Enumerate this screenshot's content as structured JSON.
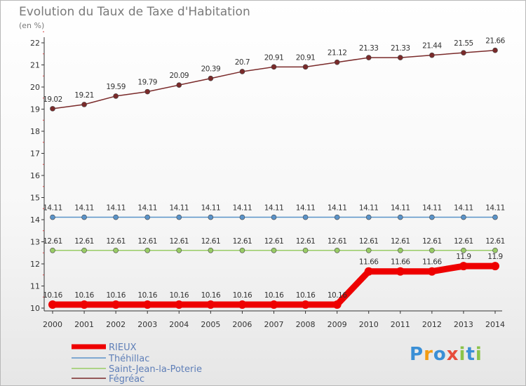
{
  "chart_data": {
    "type": "line",
    "title": "Evolution du Taux de Taxe d'Habitation",
    "subtitle": "(en %)",
    "x": [
      2000,
      2001,
      2002,
      2003,
      2004,
      2005,
      2006,
      2007,
      2008,
      2009,
      2010,
      2011,
      2012,
      2013,
      2014
    ],
    "ylim": [
      10,
      22
    ],
    "yticks": [
      10,
      11,
      12,
      13,
      14,
      15,
      16,
      17,
      18,
      19,
      20,
      21,
      22
    ],
    "grid": false,
    "legend_position": "bottom-left",
    "series": [
      {
        "name": "Fégréac",
        "color": "#7a2a2a",
        "values": [
          19.02,
          19.21,
          19.59,
          19.79,
          20.09,
          20.39,
          20.7,
          20.91,
          20.91,
          21.12,
          21.33,
          21.33,
          21.44,
          21.55,
          21.66
        ],
        "labels": [
          "19.02",
          "19.21",
          "19.59",
          "19.79",
          "20.09",
          "20.39",
          "20.7",
          "20.91",
          "20.91",
          "21.12",
          "21.33",
          "21.33",
          "21.44",
          "21.55",
          "21.66"
        ]
      },
      {
        "name": "Théhillac",
        "color": "#5a93c9",
        "values": [
          14.11,
          14.11,
          14.11,
          14.11,
          14.11,
          14.11,
          14.11,
          14.11,
          14.11,
          14.11,
          14.11,
          14.11,
          14.11,
          14.11,
          14.11
        ],
        "labels": [
          "14.11",
          "14.11",
          "14.11",
          "14.11",
          "14.11",
          "14.11",
          "14.11",
          "14.11",
          "14.11",
          "14.11",
          "14.11",
          "14.11",
          "14.11",
          "14.11",
          "14.11"
        ]
      },
      {
        "name": "Saint-Jean-la-Poterie",
        "color": "#99cc66",
        "values": [
          12.61,
          12.61,
          12.61,
          12.61,
          12.61,
          12.61,
          12.61,
          12.61,
          12.61,
          12.61,
          12.61,
          12.61,
          12.61,
          12.61,
          12.61
        ],
        "labels": [
          "12.61",
          "12.61",
          "12.61",
          "12.61",
          "12.61",
          "12.61",
          "12.61",
          "12.61",
          "12.61",
          "12.61",
          "12.61",
          "12.61",
          "12.61",
          "12.61",
          "12.61"
        ]
      },
      {
        "name": "RIEUX",
        "color": "#ee0000",
        "values": [
          10.16,
          10.16,
          10.16,
          10.16,
          10.16,
          10.16,
          10.16,
          10.16,
          10.16,
          10.16,
          11.66,
          11.66,
          11.66,
          11.9,
          11.9
        ],
        "labels": [
          "10.16",
          "10.16",
          "10.16",
          "10.16",
          "10.16",
          "10.16",
          "10.16",
          "10.16",
          "10.16",
          "10.16",
          "11.66",
          "11.66",
          "11.66",
          "11.9",
          "11.9"
        ]
      }
    ],
    "legend": [
      "RIEUX",
      "Théhillac",
      "Saint-Jean-la-Poterie",
      "Fégréac"
    ]
  },
  "logo_text": "Proxiti",
  "logo_colors": [
    "#3a8fd6",
    "#f39c12",
    "#3a8fd6",
    "#e74c3c",
    "#8bc34a",
    "#3a8fd6",
    "#8bc34a"
  ]
}
